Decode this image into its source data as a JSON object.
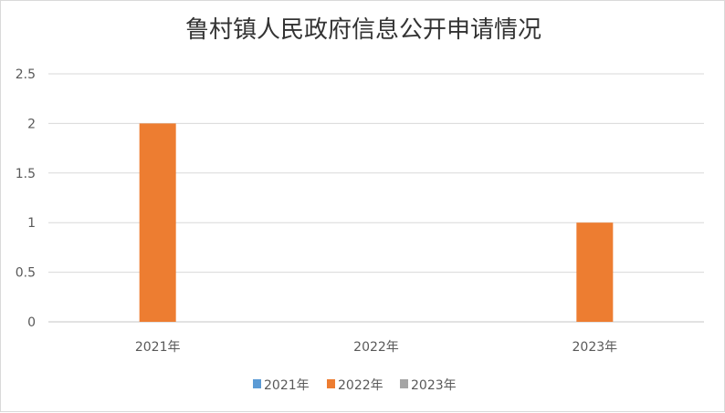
{
  "chart_data": {
    "type": "bar",
    "title": "鲁村镇人民政府信息公开申请情况",
    "categories": [
      "2021年",
      "2022年",
      "2023年"
    ],
    "series": [
      {
        "name": "2021年",
        "values": [
          0,
          0,
          0
        ],
        "color": "#5b9bd5"
      },
      {
        "name": "2022年",
        "values": [
          2,
          0,
          1
        ],
        "color": "#ed7d31"
      },
      {
        "name": "2023年",
        "values": [
          0,
          0,
          0
        ],
        "color": "#a5a5a5"
      }
    ],
    "ylim": [
      0,
      2.5
    ],
    "yticks": [
      "0",
      "0.5",
      "1",
      "1.5",
      "2",
      "2.5"
    ],
    "xlabel": "",
    "ylabel": "",
    "grid": true,
    "legend": "bottom"
  }
}
